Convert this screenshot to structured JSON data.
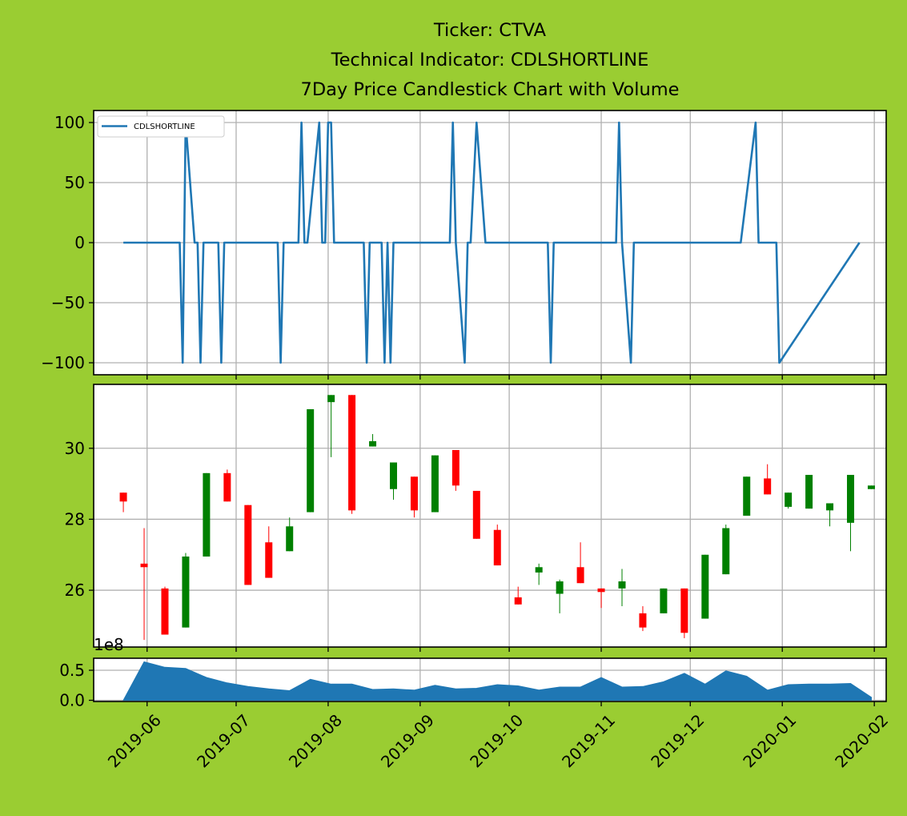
{
  "figure": {
    "background": "#9acd32",
    "title_lines": [
      "Ticker: CTVA",
      "Technical Indicator: CDLSHORTLINE",
      "7Day Price Candlestick Chart with Volume"
    ]
  },
  "chart_data": [
    {
      "type": "line",
      "legend": "CDLSHORTLINE",
      "legend_placement": "top-left",
      "ylim": [
        -110,
        110
      ],
      "yticks": [
        100,
        50,
        0,
        -50,
        -100
      ],
      "ytick_labels": [
        "100",
        "50",
        "0",
        "−50",
        "−100"
      ],
      "grid": true,
      "color": "#1f77b4",
      "dates": [
        "2019-05-24",
        "2019-06-12",
        "2019-06-13",
        "2019-06-14",
        "2019-06-17",
        "2019-06-18",
        "2019-06-19",
        "2019-06-20",
        "2019-06-25",
        "2019-06-26",
        "2019-06-27",
        "2019-07-15",
        "2019-07-16",
        "2019-07-17",
        "2019-07-22",
        "2019-07-23",
        "2019-07-24",
        "2019-07-25",
        "2019-07-29",
        "2019-07-30",
        "2019-07-31",
        "2019-08-01",
        "2019-08-02",
        "2019-08-03",
        "2019-08-05",
        "2019-08-13",
        "2019-08-14",
        "2019-08-15",
        "2019-08-19",
        "2019-08-20",
        "2019-08-21",
        "2019-08-22",
        "2019-08-23",
        "2019-09-11",
        "2019-09-12",
        "2019-09-13",
        "2019-09-16",
        "2019-09-17",
        "2019-09-18",
        "2019-09-20",
        "2019-09-23",
        "2019-09-24",
        "2019-10-14",
        "2019-10-15",
        "2019-10-16",
        "2019-11-06",
        "2019-11-07",
        "2019-11-08",
        "2019-11-11",
        "2019-11-12",
        "2019-12-18",
        "2019-12-23",
        "2019-12-24",
        "2019-12-27",
        "2019-12-30",
        "2019-12-31",
        "2020-01-27"
      ],
      "values": [
        0,
        0,
        -100,
        100,
        0,
        0,
        -100,
        0,
        0,
        -100,
        0,
        0,
        -100,
        0,
        0,
        100,
        0,
        0,
        100,
        0,
        0,
        100,
        100,
        0,
        0,
        0,
        -100,
        0,
        0,
        -100,
        0,
        -100,
        0,
        0,
        100,
        0,
        -100,
        0,
        0,
        100,
        0,
        0,
        0,
        -100,
        0,
        0,
        100,
        0,
        -100,
        0,
        0,
        100,
        0,
        0,
        0,
        -100,
        0
      ]
    },
    {
      "type": "candlestick",
      "ylim": [
        24.4,
        31.8
      ],
      "yticks": [
        26,
        28,
        30
      ],
      "ytick_labels": [
        "26",
        "28",
        "30"
      ],
      "grid": true,
      "up_color": "#008000",
      "down_color": "#ff0000",
      "candles": [
        {
          "date": "2019-05-24",
          "open": 28.75,
          "high": 28.75,
          "low": 28.2,
          "close": 28.5
        },
        {
          "date": "2019-05-31",
          "open": 26.75,
          "high": 27.75,
          "low": 24.6,
          "close": 26.65
        },
        {
          "date": "2019-06-07",
          "open": 26.05,
          "high": 26.1,
          "low": 24.75,
          "close": 24.75
        },
        {
          "date": "2019-06-14",
          "open": 24.95,
          "high": 27.05,
          "low": 24.95,
          "close": 26.95
        },
        {
          "date": "2019-06-21",
          "open": 26.95,
          "high": 29.3,
          "low": 26.95,
          "close": 29.3
        },
        {
          "date": "2019-06-28",
          "open": 29.3,
          "high": 29.4,
          "low": 28.5,
          "close": 28.5
        },
        {
          "date": "2019-07-05",
          "open": 28.4,
          "high": 28.4,
          "low": 26.15,
          "close": 26.15
        },
        {
          "date": "2019-07-12",
          "open": 27.35,
          "high": 27.8,
          "low": 26.35,
          "close": 26.35
        },
        {
          "date": "2019-07-19",
          "open": 27.1,
          "high": 28.05,
          "low": 27.1,
          "close": 27.8
        },
        {
          "date": "2019-07-26",
          "open": 28.2,
          "high": 31.1,
          "low": 28.2,
          "close": 31.1
        },
        {
          "date": "2019-08-02",
          "open": 31.3,
          "high": 31.5,
          "low": 29.75,
          "close": 31.5
        },
        {
          "date": "2019-08-09",
          "open": 31.5,
          "high": 31.5,
          "low": 28.15,
          "close": 28.25
        },
        {
          "date": "2019-08-16",
          "open": 30.05,
          "high": 30.4,
          "low": 30.05,
          "close": 30.2
        },
        {
          "date": "2019-08-23",
          "open": 28.85,
          "high": 29.6,
          "low": 28.55,
          "close": 29.6
        },
        {
          "date": "2019-08-30",
          "open": 29.2,
          "high": 29.2,
          "low": 28.05,
          "close": 28.25
        },
        {
          "date": "2019-09-06",
          "open": 28.2,
          "high": 29.8,
          "low": 28.2,
          "close": 29.8
        },
        {
          "date": "2019-09-13",
          "open": 29.95,
          "high": 29.95,
          "low": 28.8,
          "close": 28.95
        },
        {
          "date": "2019-09-20",
          "open": 28.8,
          "high": 28.8,
          "low": 27.45,
          "close": 27.45
        },
        {
          "date": "2019-09-27",
          "open": 27.7,
          "high": 27.85,
          "low": 26.7,
          "close": 26.7
        },
        {
          "date": "2019-10-04",
          "open": 25.8,
          "high": 26.1,
          "low": 25.6,
          "close": 25.6
        },
        {
          "date": "2019-10-11",
          "open": 26.5,
          "high": 26.75,
          "low": 26.15,
          "close": 26.65
        },
        {
          "date": "2019-10-18",
          "open": 25.9,
          "high": 26.3,
          "low": 25.35,
          "close": 26.25
        },
        {
          "date": "2019-10-25",
          "open": 26.65,
          "high": 27.35,
          "low": 26.2,
          "close": 26.2
        },
        {
          "date": "2019-11-01",
          "open": 26.05,
          "high": 26.05,
          "low": 25.5,
          "close": 25.95
        },
        {
          "date": "2019-11-08",
          "open": 26.05,
          "high": 26.6,
          "low": 25.55,
          "close": 26.25
        },
        {
          "date": "2019-11-15",
          "open": 25.35,
          "high": 25.55,
          "low": 24.85,
          "close": 24.95
        },
        {
          "date": "2019-11-22",
          "open": 25.35,
          "high": 26.05,
          "low": 25.35,
          "close": 26.05
        },
        {
          "date": "2019-11-29",
          "open": 26.05,
          "high": 26.05,
          "low": 24.65,
          "close": 24.8
        },
        {
          "date": "2019-12-06",
          "open": 25.2,
          "high": 27.0,
          "low": 25.2,
          "close": 27.0
        },
        {
          "date": "2019-12-13",
          "open": 26.45,
          "high": 27.85,
          "low": 26.45,
          "close": 27.75
        },
        {
          "date": "2019-12-20",
          "open": 28.1,
          "high": 29.2,
          "low": 28.1,
          "close": 29.2
        },
        {
          "date": "2019-12-27",
          "open": 29.15,
          "high": 29.55,
          "low": 28.7,
          "close": 28.7
        },
        {
          "date": "2020-01-03",
          "open": 28.35,
          "high": 28.75,
          "low": 28.3,
          "close": 28.75
        },
        {
          "date": "2020-01-10",
          "open": 28.3,
          "high": 29.25,
          "low": 28.3,
          "close": 29.25
        },
        {
          "date": "2020-01-17",
          "open": 28.25,
          "high": 28.45,
          "low": 27.8,
          "close": 28.45
        },
        {
          "date": "2020-01-24",
          "open": 27.9,
          "high": 29.25,
          "low": 27.1,
          "close": 29.25
        },
        {
          "date": "2020-01-31",
          "open": 28.85,
          "high": 28.95,
          "low": 28.85,
          "close": 28.95
        }
      ]
    },
    {
      "type": "area",
      "ylim": [
        -0.02,
        0.7
      ],
      "yticks": [
        0.0,
        0.5
      ],
      "ytick_labels": [
        "0.0",
        "0.5"
      ],
      "offset_label": "1e8",
      "grid": true,
      "color": "#1f77b4",
      "xtick_labels": [
        "2019-06",
        "2019-07",
        "2019-08",
        "2019-09",
        "2019-10",
        "2019-11",
        "2019-12",
        "2020-01",
        "2020-02"
      ],
      "xtick_dates": [
        "2019-06-01",
        "2019-07-01",
        "2019-08-01",
        "2019-09-01",
        "2019-10-01",
        "2019-11-01",
        "2019-12-01",
        "2020-01-01",
        "2020-02-01"
      ],
      "dates": [
        "2019-05-24",
        "2019-05-31",
        "2019-06-07",
        "2019-06-14",
        "2019-06-21",
        "2019-06-28",
        "2019-07-05",
        "2019-07-12",
        "2019-07-19",
        "2019-07-26",
        "2019-08-02",
        "2019-08-09",
        "2019-08-16",
        "2019-08-23",
        "2019-08-30",
        "2019-09-06",
        "2019-09-13",
        "2019-09-20",
        "2019-09-27",
        "2019-10-04",
        "2019-10-11",
        "2019-10-18",
        "2019-10-25",
        "2019-11-01",
        "2019-11-08",
        "2019-11-15",
        "2019-11-22",
        "2019-11-29",
        "2019-12-06",
        "2019-12-13",
        "2019-12-20",
        "2019-12-27",
        "2020-01-03",
        "2020-01-10",
        "2020-01-17",
        "2020-01-24",
        "2020-01-31"
      ],
      "values": [
        0.0,
        0.64,
        0.55,
        0.53,
        0.38,
        0.29,
        0.23,
        0.19,
        0.16,
        0.35,
        0.27,
        0.27,
        0.18,
        0.19,
        0.17,
        0.25,
        0.19,
        0.2,
        0.26,
        0.24,
        0.17,
        0.22,
        0.22,
        0.38,
        0.22,
        0.23,
        0.31,
        0.45,
        0.27,
        0.49,
        0.4,
        0.17,
        0.26,
        0.27,
        0.27,
        0.28,
        0.05
      ]
    }
  ]
}
